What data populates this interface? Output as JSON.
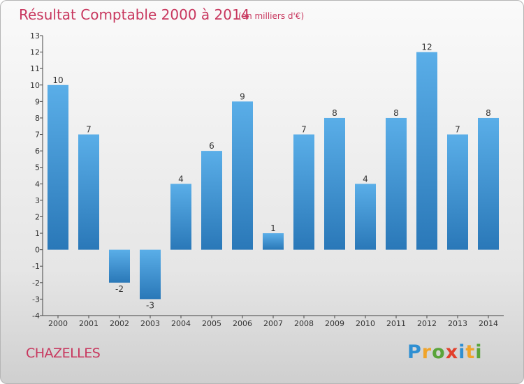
{
  "chart_data": {
    "type": "bar",
    "title": "Résultat Comptable 2000 à 2014",
    "subtitle": "(en milliers d'€)",
    "categories": [
      "2000",
      "2001",
      "2002",
      "2003",
      "2004",
      "2005",
      "2006",
      "2007",
      "2008",
      "2009",
      "2010",
      "2011",
      "2012",
      "2013",
      "2014"
    ],
    "values": [
      10,
      7,
      -2,
      -3,
      4,
      6,
      9,
      1,
      7,
      8,
      4,
      8,
      12,
      7,
      8
    ],
    "ylim": [
      -4,
      13
    ],
    "yticks": [
      -4,
      -3,
      -2,
      -1,
      0,
      1,
      2,
      3,
      4,
      5,
      6,
      7,
      8,
      9,
      10,
      11,
      12,
      13
    ],
    "xlabel": "",
    "ylabel": "",
    "grid": false,
    "bar_color": "#3d8fd0"
  },
  "footer": {
    "commune": "CHAZELLES",
    "logo_letters": [
      {
        "ch": "P",
        "color": "#2f8fd2"
      },
      {
        "ch": "r",
        "color": "#f0a42a"
      },
      {
        "ch": "o",
        "color": "#5aa43a"
      },
      {
        "ch": "x",
        "color": "#e2402c"
      },
      {
        "ch": "i",
        "color": "#2f8fd2"
      },
      {
        "ch": "t",
        "color": "#f0a42a"
      },
      {
        "ch": "i",
        "color": "#5aa43a"
      }
    ]
  }
}
